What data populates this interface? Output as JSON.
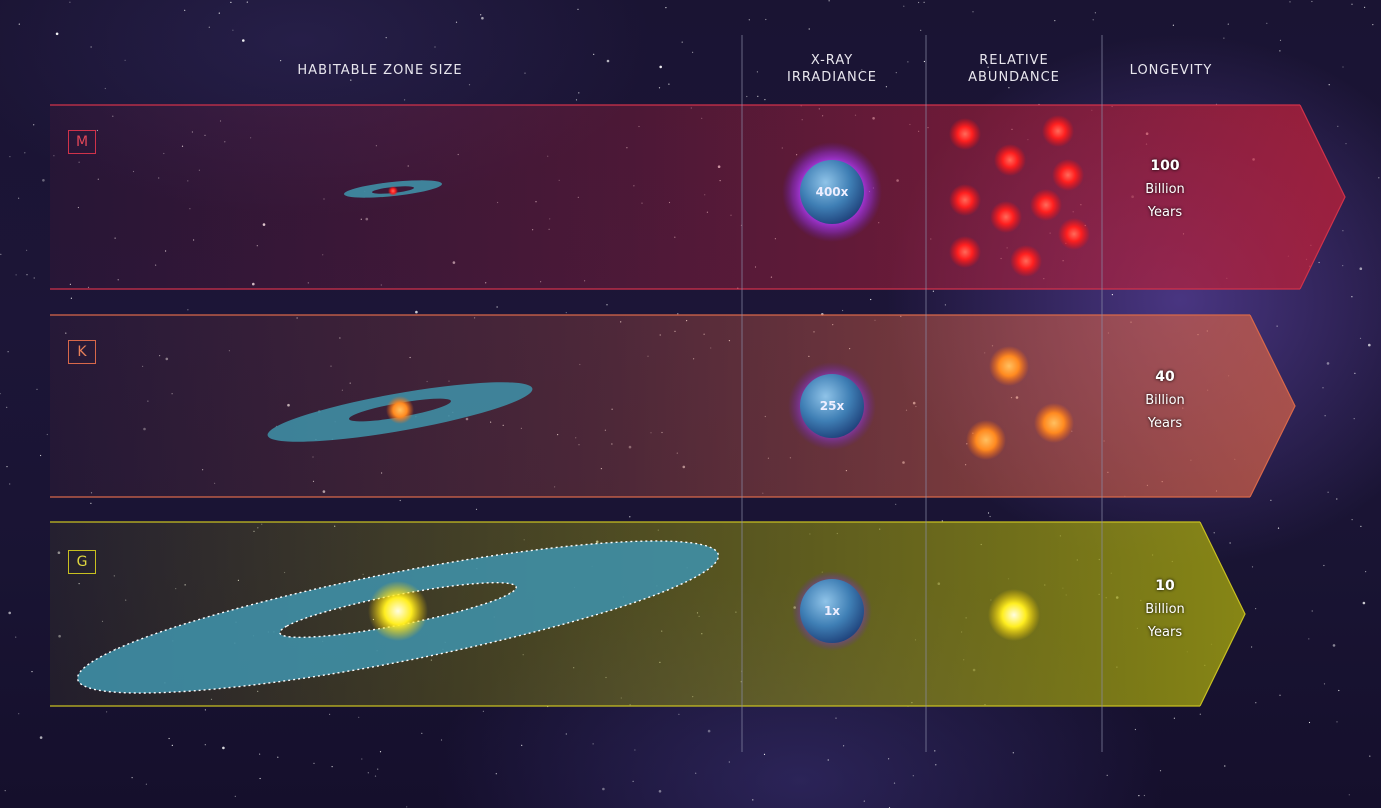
{
  "headers": {
    "habitable_zone": "HABITABLE ZONE SIZE",
    "xray_line1": "X-RAY",
    "xray_line2": "IRRADIANCE",
    "abundance_line1": "RELATIVE",
    "abundance_line2": "ABUNDANCE",
    "longevity": "LONGEVITY"
  },
  "rows": [
    {
      "star_class": "M",
      "xray": "400x",
      "longevity_value": "100",
      "longevity_line2": "Billion",
      "longevity_line3": "Years",
      "abundance_count": 10,
      "color": "#e23a3a"
    },
    {
      "star_class": "K",
      "xray": "25x",
      "longevity_value": "40",
      "longevity_line2": "Billion",
      "longevity_line3": "Years",
      "abundance_count": 3,
      "color": "#f07a2a"
    },
    {
      "star_class": "G",
      "xray": "1x",
      "longevity_value": "10",
      "longevity_line2": "Billion",
      "longevity_line3": "Years",
      "abundance_count": 1,
      "color": "#f5e21a"
    }
  ],
  "colors": {
    "band_m": "#a8203a",
    "band_k": "#c2543f",
    "band_g": "#8a8a10",
    "habitable_zone": "#3f8fa6",
    "planet": "#3f7fb5",
    "planet_glow": "#b040ff"
  }
}
